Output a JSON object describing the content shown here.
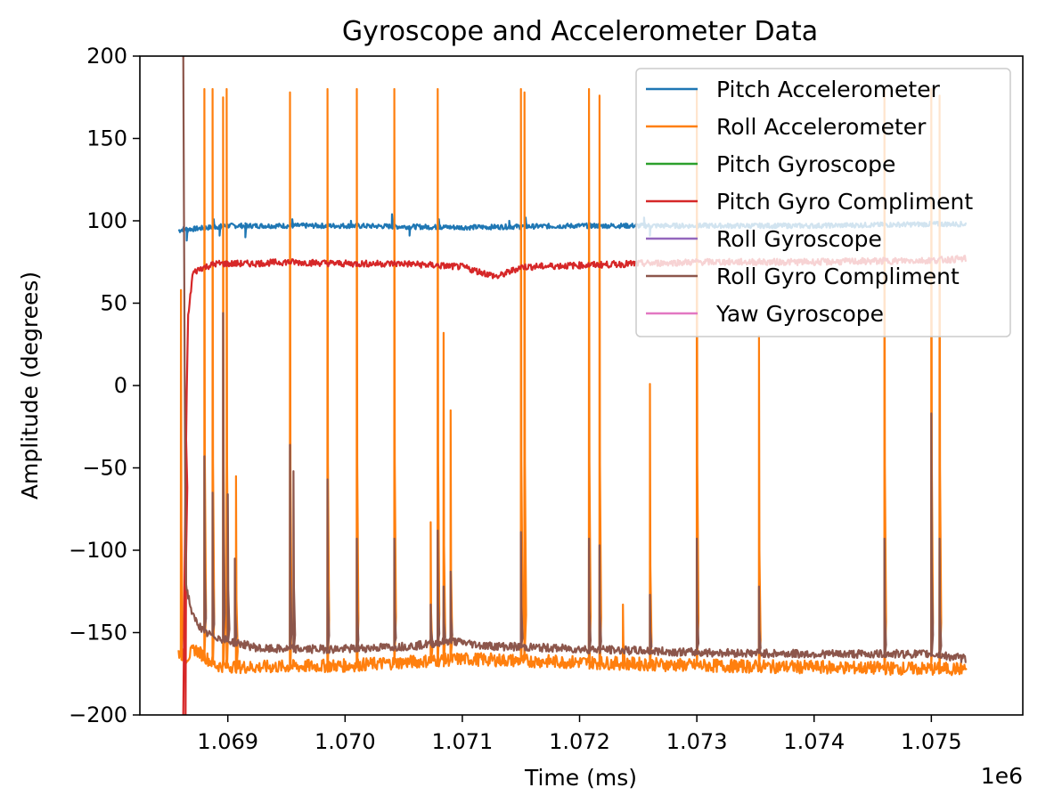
{
  "chart_data": {
    "type": "line",
    "title": "Gyroscope and Accelerometer Data",
    "xlabel": "Time (ms)",
    "ylabel": "Amplitude (degrees)",
    "x_offset_label": "1e6",
    "xlim": [
      1068250,
      1075780
    ],
    "ylim": [
      -200,
      200
    ],
    "xticks": [
      {
        "value": 1069000,
        "label": "1.069"
      },
      {
        "value": 1070000,
        "label": "1.070"
      },
      {
        "value": 1071000,
        "label": "1.071"
      },
      {
        "value": 1072000,
        "label": "1.072"
      },
      {
        "value": 1073000,
        "label": "1.073"
      },
      {
        "value": 1074000,
        "label": "1.074"
      },
      {
        "value": 1075000,
        "label": "1.075"
      }
    ],
    "yticks": [
      {
        "value": 200,
        "label": "200"
      },
      {
        "value": 150,
        "label": "150"
      },
      {
        "value": 100,
        "label": "100"
      },
      {
        "value": 50,
        "label": "50"
      },
      {
        "value": 0,
        "label": "0"
      },
      {
        "value": -50,
        "label": "−50"
      },
      {
        "value": -100,
        "label": "−100"
      },
      {
        "value": -150,
        "label": "−150"
      },
      {
        "value": -200,
        "label": "−200"
      }
    ],
    "grid": false,
    "legend_position": "upper-right",
    "series": [
      {
        "name": "Pitch Accelerometer",
        "color": "#1f77b4",
        "baseline": 96,
        "noise": 1.5,
        "x_range": [
          1068580,
          1075300
        ],
        "points": [
          [
            1068580,
            94
          ],
          [
            1068620,
            95
          ],
          [
            1068700,
            95
          ],
          [
            1068850,
            96
          ],
          [
            1069000,
            97
          ],
          [
            1070000,
            97
          ],
          [
            1071000,
            96
          ],
          [
            1072000,
            97
          ],
          [
            1073000,
            97
          ],
          [
            1074000,
            97
          ],
          [
            1075000,
            98
          ],
          [
            1075300,
            98
          ]
        ],
        "spikes": [
          {
            "x": 1068650,
            "y": 88
          },
          {
            "x": 1068880,
            "y": 101
          },
          {
            "x": 1068930,
            "y": 91
          },
          {
            "x": 1069150,
            "y": 90
          },
          {
            "x": 1069550,
            "y": 101
          },
          {
            "x": 1070050,
            "y": 100
          },
          {
            "x": 1070400,
            "y": 104
          },
          {
            "x": 1070550,
            "y": 91
          },
          {
            "x": 1070800,
            "y": 101
          },
          {
            "x": 1071400,
            "y": 100
          },
          {
            "x": 1071540,
            "y": 102
          },
          {
            "x": 1072550,
            "y": 102
          },
          {
            "x": 1072600,
            "y": 91
          },
          {
            "x": 1073000,
            "y": 101
          }
        ]
      },
      {
        "name": "Roll Accelerometer",
        "color": "#ff7f0e",
        "baseline": -170,
        "noise": 4,
        "x_range": [
          1068580,
          1075300
        ],
        "points": [
          [
            1068580,
            -162
          ],
          [
            1068650,
            -165
          ],
          [
            1068720,
            -160
          ],
          [
            1068900,
            -170
          ],
          [
            1069200,
            -171
          ],
          [
            1070000,
            -170
          ],
          [
            1071000,
            -166
          ],
          [
            1072000,
            -168
          ],
          [
            1073000,
            -170
          ],
          [
            1074000,
            -171
          ],
          [
            1075000,
            -172
          ],
          [
            1075300,
            -172
          ]
        ],
        "spikes": [
          {
            "x": 1068600,
            "y": 58
          },
          {
            "x": 1068800,
            "y": 180
          },
          {
            "x": 1068870,
            "y": 180
          },
          {
            "x": 1068960,
            "y": 175
          },
          {
            "x": 1068990,
            "y": 180
          },
          {
            "x": 1069070,
            "y": -55
          },
          {
            "x": 1069530,
            "y": 178
          },
          {
            "x": 1069850,
            "y": 180
          },
          {
            "x": 1070100,
            "y": 180
          },
          {
            "x": 1070420,
            "y": 180
          },
          {
            "x": 1070730,
            "y": -83
          },
          {
            "x": 1070790,
            "y": 180
          },
          {
            "x": 1070840,
            "y": 32
          },
          {
            "x": 1070900,
            "y": -15
          },
          {
            "x": 1071500,
            "y": 180
          },
          {
            "x": 1071530,
            "y": 178
          },
          {
            "x": 1072080,
            "y": 180
          },
          {
            "x": 1072170,
            "y": 176
          },
          {
            "x": 1072370,
            "y": -133
          },
          {
            "x": 1072600,
            "y": 1
          },
          {
            "x": 1073000,
            "y": 180
          },
          {
            "x": 1073530,
            "y": 30
          },
          {
            "x": 1074600,
            "y": 180
          },
          {
            "x": 1075000,
            "y": 180
          },
          {
            "x": 1075070,
            "y": 176
          }
        ]
      },
      {
        "name": "Pitch Gyroscope",
        "color": "#2ca02c",
        "points": []
      },
      {
        "name": "Pitch Gyro Compliment",
        "color": "#d62728",
        "baseline": 73,
        "noise": 2,
        "x_range": [
          1068620,
          1075300
        ],
        "points": [
          [
            1068620,
            -200
          ],
          [
            1068640,
            -50
          ],
          [
            1068660,
            40
          ],
          [
            1068700,
            68
          ],
          [
            1068760,
            71
          ],
          [
            1068900,
            74
          ],
          [
            1069200,
            74
          ],
          [
            1069500,
            75
          ],
          [
            1070000,
            74
          ],
          [
            1070500,
            74
          ],
          [
            1071000,
            72
          ],
          [
            1071300,
            66
          ],
          [
            1071500,
            72
          ],
          [
            1072000,
            73
          ],
          [
            1072500,
            74
          ],
          [
            1073000,
            75
          ],
          [
            1074000,
            75
          ],
          [
            1075000,
            76
          ],
          [
            1075300,
            77
          ]
        ],
        "spikes": [
          {
            "x": 1068640,
            "y": -200
          }
        ]
      },
      {
        "name": "Roll Gyroscope",
        "color": "#9467bd",
        "points": []
      },
      {
        "name": "Roll Gyro Compliment",
        "color": "#8c564b",
        "baseline": -162,
        "noise": 2.5,
        "x_range": [
          1068620,
          1075300
        ],
        "points": [
          [
            1068620,
            200
          ],
          [
            1068640,
            -120
          ],
          [
            1068700,
            -140
          ],
          [
            1068800,
            -150
          ],
          [
            1069000,
            -155
          ],
          [
            1069300,
            -160
          ],
          [
            1070000,
            -160
          ],
          [
            1070600,
            -158
          ],
          [
            1070900,
            -155
          ],
          [
            1071200,
            -158
          ],
          [
            1072000,
            -160
          ],
          [
            1073000,
            -162
          ],
          [
            1074000,
            -163
          ],
          [
            1075000,
            -163
          ],
          [
            1075300,
            -166
          ]
        ],
        "spikes": [
          {
            "x": 1068800,
            "y": -43
          },
          {
            "x": 1068870,
            "y": -65
          },
          {
            "x": 1068960,
            "y": 44
          },
          {
            "x": 1069000,
            "y": -66
          },
          {
            "x": 1069060,
            "y": -105
          },
          {
            "x": 1069530,
            "y": -36
          },
          {
            "x": 1069560,
            "y": -52
          },
          {
            "x": 1069850,
            "y": -57
          },
          {
            "x": 1070100,
            "y": -93
          },
          {
            "x": 1070420,
            "y": -93
          },
          {
            "x": 1070730,
            "y": -133
          },
          {
            "x": 1070790,
            "y": -88
          },
          {
            "x": 1070840,
            "y": -122
          },
          {
            "x": 1070900,
            "y": -113
          },
          {
            "x": 1071500,
            "y": -89
          },
          {
            "x": 1072080,
            "y": -93
          },
          {
            "x": 1072170,
            "y": -97
          },
          {
            "x": 1072600,
            "y": -127
          },
          {
            "x": 1073000,
            "y": -93
          },
          {
            "x": 1073530,
            "y": -122
          },
          {
            "x": 1074600,
            "y": -93
          },
          {
            "x": 1075000,
            "y": -17
          },
          {
            "x": 1075070,
            "y": -93
          }
        ]
      },
      {
        "name": "Yaw Gyroscope",
        "color": "#e377c2",
        "points": []
      }
    ]
  }
}
